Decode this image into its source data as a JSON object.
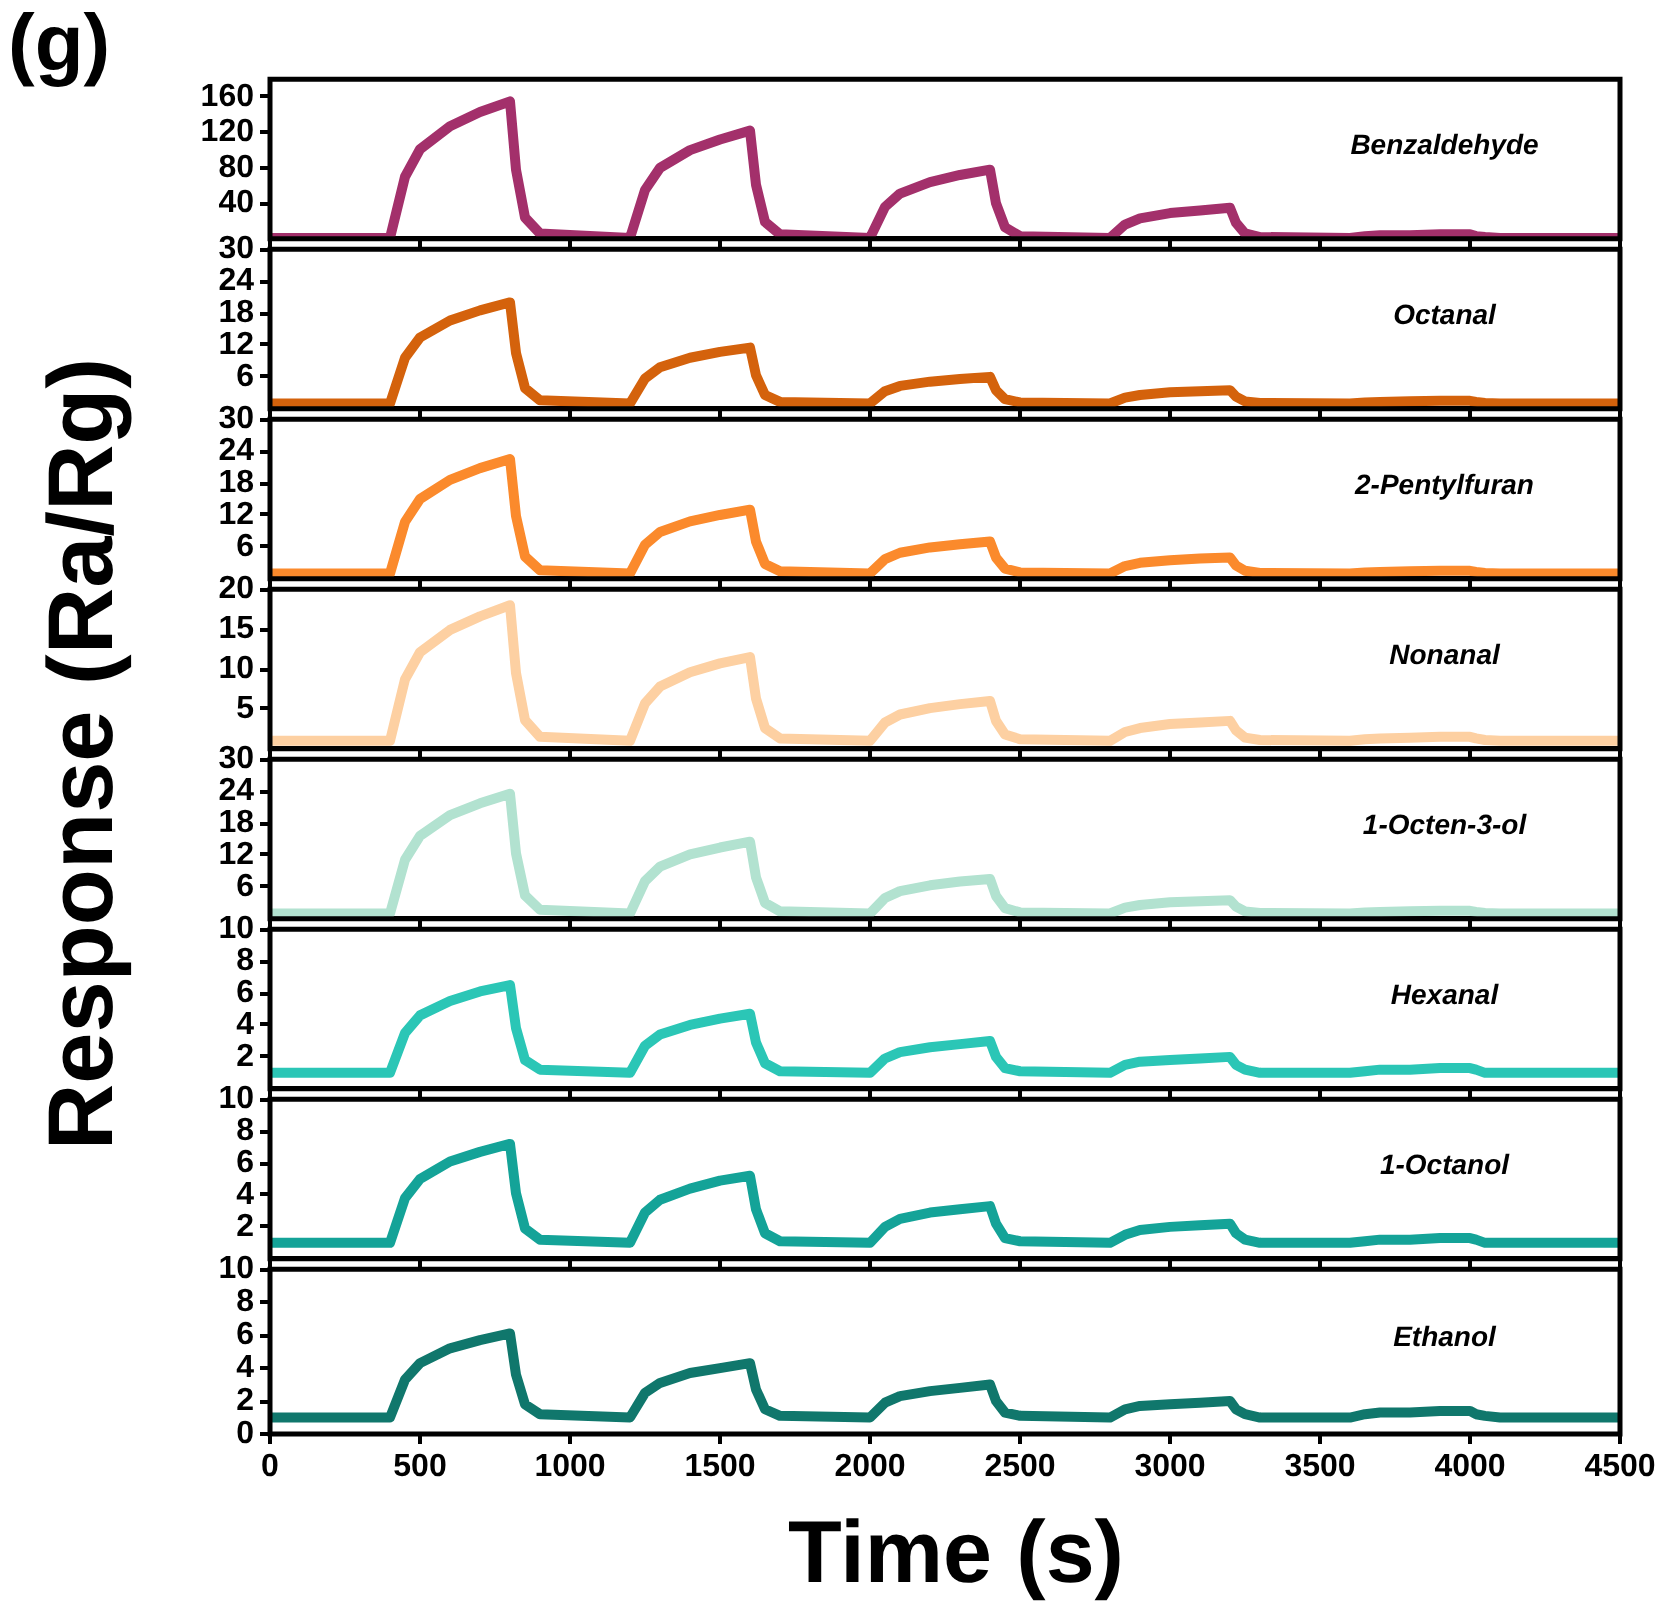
{
  "chart_data": [
    {
      "type": "line",
      "title": "(g)",
      "ylabel": "Response (Ra/Rg)",
      "x": [
        0,
        400,
        450,
        500,
        600,
        700,
        800,
        820,
        850,
        900,
        1200,
        1250,
        1300,
        1400,
        1500,
        1600,
        1620,
        1650,
        1700,
        2000,
        2050,
        2100,
        2200,
        2300,
        2400,
        2420,
        2450,
        2500,
        2800,
        2850,
        2900,
        3000,
        3100,
        3200,
        3220,
        3250,
        3300,
        3600,
        3650,
        3700,
        3800,
        3900,
        4000,
        4020,
        4050,
        4100,
        4500
      ],
      "xlim": [
        0,
        4500
      ],
      "xticks": [
        0,
        500,
        1000,
        1500,
        2000,
        2500,
        3000,
        3500,
        4000,
        4500
      ],
      "ylim": [
        0,
        180
      ],
      "yticks": [
        40,
        80,
        120,
        160
      ],
      "tick_labels": "y",
      "grid": false,
      "legend": false,
      "marker": "none",
      "line_style": "solid",
      "series": [
        {
          "name": "Benzaldehyde",
          "color": "#a3306b",
          "values": [
            1,
            1,
            70,
            101,
            127,
            143,
            155,
            78,
            24,
            6,
            1,
            55,
            80,
            100,
            112,
            122,
            61,
            19,
            5,
            1,
            36,
            51,
            64,
            72,
            78,
            40,
            13,
            3,
            1,
            16,
            23,
            29,
            32,
            35,
            18,
            6,
            2,
            1,
            3,
            4,
            4,
            5,
            5,
            3,
            2,
            1,
            1
          ]
        }
      ]
    },
    {
      "type": "line",
      "x": [
        0,
        400,
        450,
        500,
        600,
        700,
        800,
        820,
        850,
        900,
        1200,
        1250,
        1300,
        1400,
        1500,
        1600,
        1620,
        1650,
        1700,
        2000,
        2050,
        2100,
        2200,
        2300,
        2400,
        2420,
        2450,
        2500,
        2800,
        2850,
        2900,
        3000,
        3100,
        3200,
        3220,
        3250,
        3300,
        3600,
        3650,
        3700,
        3800,
        3900,
        4000,
        4020,
        4050,
        4100,
        4500
      ],
      "xlim": [
        0,
        4500
      ],
      "xticks": [
        0,
        500,
        1000,
        1500,
        2000,
        2500,
        3000,
        3500,
        4000,
        4500
      ],
      "ylim": [
        0,
        30
      ],
      "yticks": [
        6,
        12,
        18,
        24,
        30
      ],
      "tick_labels": "y",
      "grid": false,
      "legend": false,
      "marker": "none",
      "line_style": "solid",
      "series": [
        {
          "name": "Octanal",
          "color": "#d4620c",
          "values": [
            1,
            1,
            9.6,
            13.4,
            16.6,
            18.5,
            20,
            10.5,
            3.9,
            1.6,
            1,
            5.7,
            7.8,
            9.6,
            10.7,
            11.5,
            6.3,
            2.6,
            1.3,
            1,
            3.3,
            4.3,
            5.1,
            5.6,
            6,
            3.5,
            1.8,
            1.2,
            1,
            2.1,
            2.6,
            3.1,
            3.3,
            3.5,
            2.3,
            1.4,
            1.1,
            1,
            1.2,
            1.3,
            1.4,
            1.5,
            1.5,
            1.3,
            1.1,
            1,
            1
          ]
        }
      ]
    },
    {
      "type": "line",
      "x": [
        0,
        400,
        450,
        500,
        600,
        700,
        800,
        820,
        850,
        900,
        1200,
        1250,
        1300,
        1400,
        1500,
        1600,
        1620,
        1650,
        1700,
        2000,
        2050,
        2100,
        2200,
        2300,
        2400,
        2420,
        2450,
        2500,
        2800,
        2850,
        2900,
        3000,
        3100,
        3200,
        3220,
        3250,
        3300,
        3600,
        3650,
        3700,
        3800,
        3900,
        4000,
        4020,
        4050,
        4100,
        4500
      ],
      "xlim": [
        0,
        4500
      ],
      "xticks": [
        0,
        500,
        1000,
        1500,
        2000,
        2500,
        3000,
        3500,
        4000,
        4500
      ],
      "ylim": [
        0,
        30
      ],
      "yticks": [
        6,
        12,
        18,
        24,
        30
      ],
      "tick_labels": "y",
      "grid": false,
      "legend": false,
      "marker": "none",
      "line_style": "solid",
      "series": [
        {
          "name": "2-Pentylfuran",
          "color": "#fb8a2c",
          "values": [
            1,
            1,
            10.7,
            15,
            18.6,
            20.8,
            22.5,
            11.8,
            4.2,
            1.6,
            1,
            6.4,
            8.8,
            10.8,
            12,
            13,
            7,
            2.8,
            1.4,
            1,
            3.7,
            4.9,
            5.9,
            6.5,
            7,
            4,
            1.9,
            1.2,
            1,
            2.4,
            3,
            3.5,
            3.8,
            4,
            2.5,
            1.5,
            1.1,
            1,
            1.2,
            1.3,
            1.4,
            1.5,
            1.5,
            1.3,
            1.1,
            1,
            1
          ]
        }
      ]
    },
    {
      "type": "line",
      "x": [
        0,
        400,
        450,
        500,
        600,
        700,
        800,
        820,
        850,
        900,
        1200,
        1250,
        1300,
        1400,
        1500,
        1600,
        1620,
        1650,
        1700,
        2000,
        2050,
        2100,
        2200,
        2300,
        2400,
        2420,
        2450,
        2500,
        2800,
        2850,
        2900,
        3000,
        3100,
        3200,
        3220,
        3250,
        3300,
        3600,
        3650,
        3700,
        3800,
        3900,
        4000,
        4020,
        4050,
        4100,
        4500
      ],
      "xlim": [
        0,
        4500
      ],
      "xticks": [
        0,
        500,
        1000,
        1500,
        2000,
        2500,
        3000,
        3500,
        4000,
        4500
      ],
      "ylim": [
        0,
        20
      ],
      "yticks": [
        5,
        10,
        15,
        20
      ],
      "tick_labels": "y",
      "grid": false,
      "legend": false,
      "marker": "none",
      "line_style": "solid",
      "series": [
        {
          "name": "Nonanal",
          "color": "#fdd0a2",
          "values": [
            1,
            1,
            8.7,
            12.1,
            14.9,
            16.6,
            18,
            9.5,
            3.6,
            1.5,
            1,
            5.7,
            7.8,
            9.6,
            10.7,
            11.5,
            6.3,
            2.6,
            1.3,
            1,
            3.3,
            4.3,
            5.1,
            5.6,
            6,
            3.5,
            1.8,
            1.2,
            1,
            2.1,
            2.6,
            3.1,
            3.3,
            3.5,
            2.3,
            1.4,
            1.1,
            1,
            1.2,
            1.3,
            1.4,
            1.5,
            1.5,
            1.3,
            1.1,
            1,
            1
          ]
        }
      ]
    },
    {
      "type": "line",
      "x": [
        0,
        400,
        450,
        500,
        600,
        700,
        800,
        820,
        850,
        900,
        1200,
        1250,
        1300,
        1400,
        1500,
        1600,
        1620,
        1650,
        1700,
        2000,
        2050,
        2100,
        2200,
        2300,
        2400,
        2420,
        2450,
        2500,
        2800,
        2850,
        2900,
        3000,
        3100,
        3200,
        3220,
        3250,
        3300,
        3600,
        3650,
        3700,
        3800,
        3900,
        4000,
        4020,
        4050,
        4100,
        4500
      ],
      "xlim": [
        0,
        4500
      ],
      "xticks": [
        0,
        500,
        1000,
        1500,
        2000,
        2500,
        3000,
        3500,
        4000,
        4500
      ],
      "ylim": [
        0,
        30
      ],
      "yticks": [
        6,
        12,
        18,
        24,
        30
      ],
      "tick_labels": "y",
      "grid": false,
      "legend": false,
      "marker": "none",
      "line_style": "solid",
      "series": [
        {
          "name": "1-Octen-3-ol",
          "color": "#b2e2d0",
          "values": [
            1,
            1,
            11.1,
            15.6,
            19.5,
            21.7,
            23.5,
            12.3,
            4.4,
            1.7,
            1,
            7.1,
            9.8,
            12.1,
            13.4,
            14.5,
            7.8,
            3,
            1.4,
            1,
            3.9,
            5.2,
            6.3,
            7,
            7.5,
            4.3,
            2,
            1.2,
            1,
            2.1,
            2.6,
            3.1,
            3.3,
            3.5,
            2.3,
            1.4,
            1.1,
            1,
            1.2,
            1.3,
            1.4,
            1.5,
            1.5,
            1.3,
            1.1,
            1,
            1
          ]
        }
      ]
    },
    {
      "type": "line",
      "x": [
        0,
        400,
        450,
        500,
        600,
        700,
        800,
        820,
        850,
        900,
        1200,
        1250,
        1300,
        1400,
        1500,
        1600,
        1620,
        1650,
        1700,
        2000,
        2050,
        2100,
        2200,
        2300,
        2400,
        2420,
        2450,
        2500,
        2800,
        2850,
        2900,
        3000,
        3100,
        3200,
        3220,
        3250,
        3300,
        3600,
        3650,
        3700,
        3800,
        3900,
        4000,
        4020,
        4050,
        4100,
        4500
      ],
      "xlim": [
        0,
        4500
      ],
      "xticks": [
        0,
        500,
        1000,
        1500,
        2000,
        2500,
        3000,
        3500,
        4000,
        4500
      ],
      "ylim": [
        0,
        10
      ],
      "yticks": [
        2,
        4,
        6,
        8,
        10
      ],
      "tick_labels": "y",
      "grid": false,
      "legend": false,
      "marker": "none",
      "line_style": "solid",
      "series": [
        {
          "name": "Hexanal",
          "color": "#2bc6b6",
          "values": [
            1,
            1,
            3.5,
            4.6,
            5.5,
            6.1,
            6.5,
            3.8,
            1.8,
            1.2,
            1,
            2.7,
            3.4,
            4,
            4.4,
            4.7,
            2.9,
            1.6,
            1.1,
            1,
            1.9,
            2.3,
            2.6,
            2.8,
            3,
            2,
            1.3,
            1.1,
            1,
            1.5,
            1.7,
            1.8,
            1.9,
            2,
            1.5,
            1.2,
            1,
            1,
            1.1,
            1.2,
            1.2,
            1.3,
            1.3,
            1.2,
            1,
            1,
            1
          ]
        }
      ]
    },
    {
      "type": "line",
      "x": [
        0,
        400,
        450,
        500,
        600,
        700,
        800,
        820,
        850,
        900,
        1200,
        1250,
        1300,
        1400,
        1500,
        1600,
        1620,
        1650,
        1700,
        2000,
        2050,
        2100,
        2200,
        2300,
        2400,
        2420,
        2450,
        2500,
        2800,
        2850,
        2900,
        3000,
        3100,
        3200,
        3220,
        3250,
        3300,
        3600,
        3650,
        3700,
        3800,
        3900,
        4000,
        4020,
        4050,
        4100,
        4500
      ],
      "xlim": [
        0,
        4500
      ],
      "xticks": [
        0,
        500,
        1000,
        1500,
        2000,
        2500,
        3000,
        3500,
        4000,
        4500
      ],
      "ylim": [
        0,
        10
      ],
      "yticks": [
        2,
        4,
        6,
        8,
        10
      ],
      "tick_labels": "y",
      "grid": false,
      "legend": false,
      "marker": "none",
      "line_style": "solid",
      "series": [
        {
          "name": "1-Octanol",
          "color": "#14a398",
          "values": [
            1,
            1,
            3.8,
            5,
            6.1,
            6.7,
            7.2,
            4.1,
            1.9,
            1.2,
            1,
            2.9,
            3.7,
            4.4,
            4.9,
            5.2,
            3.1,
            1.6,
            1.1,
            1,
            2,
            2.5,
            2.9,
            3.1,
            3.3,
            2.2,
            1.3,
            1.1,
            1,
            1.5,
            1.8,
            2,
            2.1,
            2.2,
            1.6,
            1.2,
            1,
            1,
            1.1,
            1.2,
            1.2,
            1.3,
            1.3,
            1.2,
            1,
            1,
            1
          ]
        }
      ]
    },
    {
      "type": "line",
      "xlabel": "Time (s)",
      "x": [
        0,
        400,
        450,
        500,
        600,
        700,
        800,
        820,
        850,
        900,
        1200,
        1250,
        1300,
        1400,
        1500,
        1600,
        1620,
        1650,
        1700,
        2000,
        2050,
        2100,
        2200,
        2300,
        2400,
        2420,
        2450,
        2500,
        2800,
        2850,
        2900,
        3000,
        3100,
        3200,
        3220,
        3250,
        3300,
        3600,
        3650,
        3700,
        3800,
        3900,
        4000,
        4020,
        4050,
        4100,
        4500
      ],
      "xlim": [
        0,
        4500
      ],
      "xticks": [
        0,
        500,
        1000,
        1500,
        2000,
        2500,
        3000,
        3500,
        4000,
        4500
      ],
      "ylim": [
        0,
        10
      ],
      "yticks": [
        0,
        2,
        4,
        6,
        8,
        10
      ],
      "grid": false,
      "legend": false,
      "marker": "none",
      "line_style": "solid",
      "series": [
        {
          "name": "Ethanol",
          "color": "#10776c",
          "values": [
            1,
            1,
            3.3,
            4.3,
            5.2,
            5.7,
            6.1,
            3.6,
            1.8,
            1.2,
            1,
            2.5,
            3.1,
            3.7,
            4,
            4.3,
            2.7,
            1.5,
            1.1,
            1,
            1.9,
            2.3,
            2.6,
            2.8,
            3,
            2,
            1.3,
            1.1,
            1,
            1.5,
            1.7,
            1.8,
            1.9,
            2,
            1.5,
            1.2,
            1,
            1,
            1.2,
            1.3,
            1.3,
            1.4,
            1.4,
            1.2,
            1.1,
            1,
            1
          ]
        }
      ]
    }
  ]
}
